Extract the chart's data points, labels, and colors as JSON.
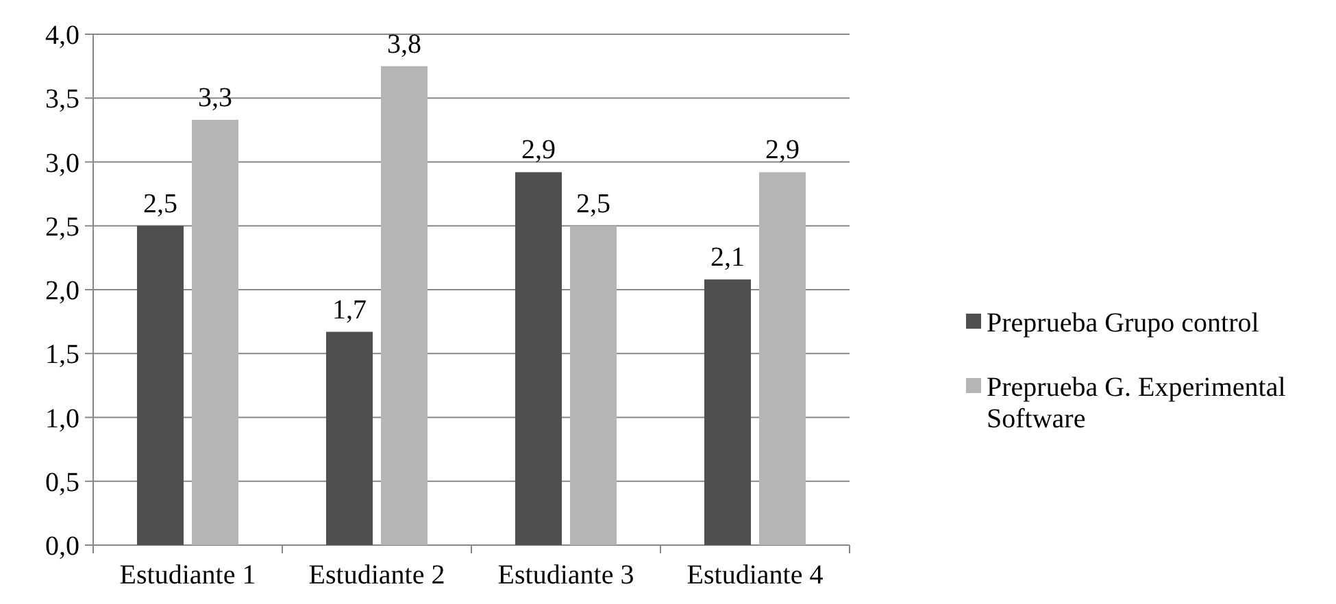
{
  "chart_data": {
    "type": "bar",
    "categories": [
      "Estudiante 1",
      "Estudiante 2",
      "Estudiante 3",
      "Estudiante 4"
    ],
    "series": [
      {
        "name": "Preprueba Grupo control",
        "color": "#4f4f4f",
        "values": [
          2.5,
          1.67,
          2.92,
          2.08
        ],
        "value_labels": [
          "2,5",
          "1,7",
          "2,9",
          "2,1"
        ]
      },
      {
        "name": "Preprueba G. Experimental Software",
        "color": "#b5b5b5",
        "values": [
          3.33,
          3.75,
          2.5,
          2.92
        ],
        "value_labels": [
          "3,3",
          "3,8",
          "2,5",
          "2,9"
        ]
      }
    ],
    "ylim": [
      0,
      4
    ],
    "yticks": [
      {
        "value": 0,
        "label": "0,0"
      },
      {
        "value": 0.5,
        "label": "0,5"
      },
      {
        "value": 1,
        "label": "1,0"
      },
      {
        "value": 1.5,
        "label": "1,5"
      },
      {
        "value": 2,
        "label": "2,0"
      },
      {
        "value": 2.5,
        "label": "2,5"
      },
      {
        "value": 3,
        "label": "3,0"
      },
      {
        "value": 3.5,
        "label": "3,5"
      },
      {
        "value": 4,
        "label": "4,0"
      }
    ],
    "grid": "y",
    "legend": "right"
  }
}
